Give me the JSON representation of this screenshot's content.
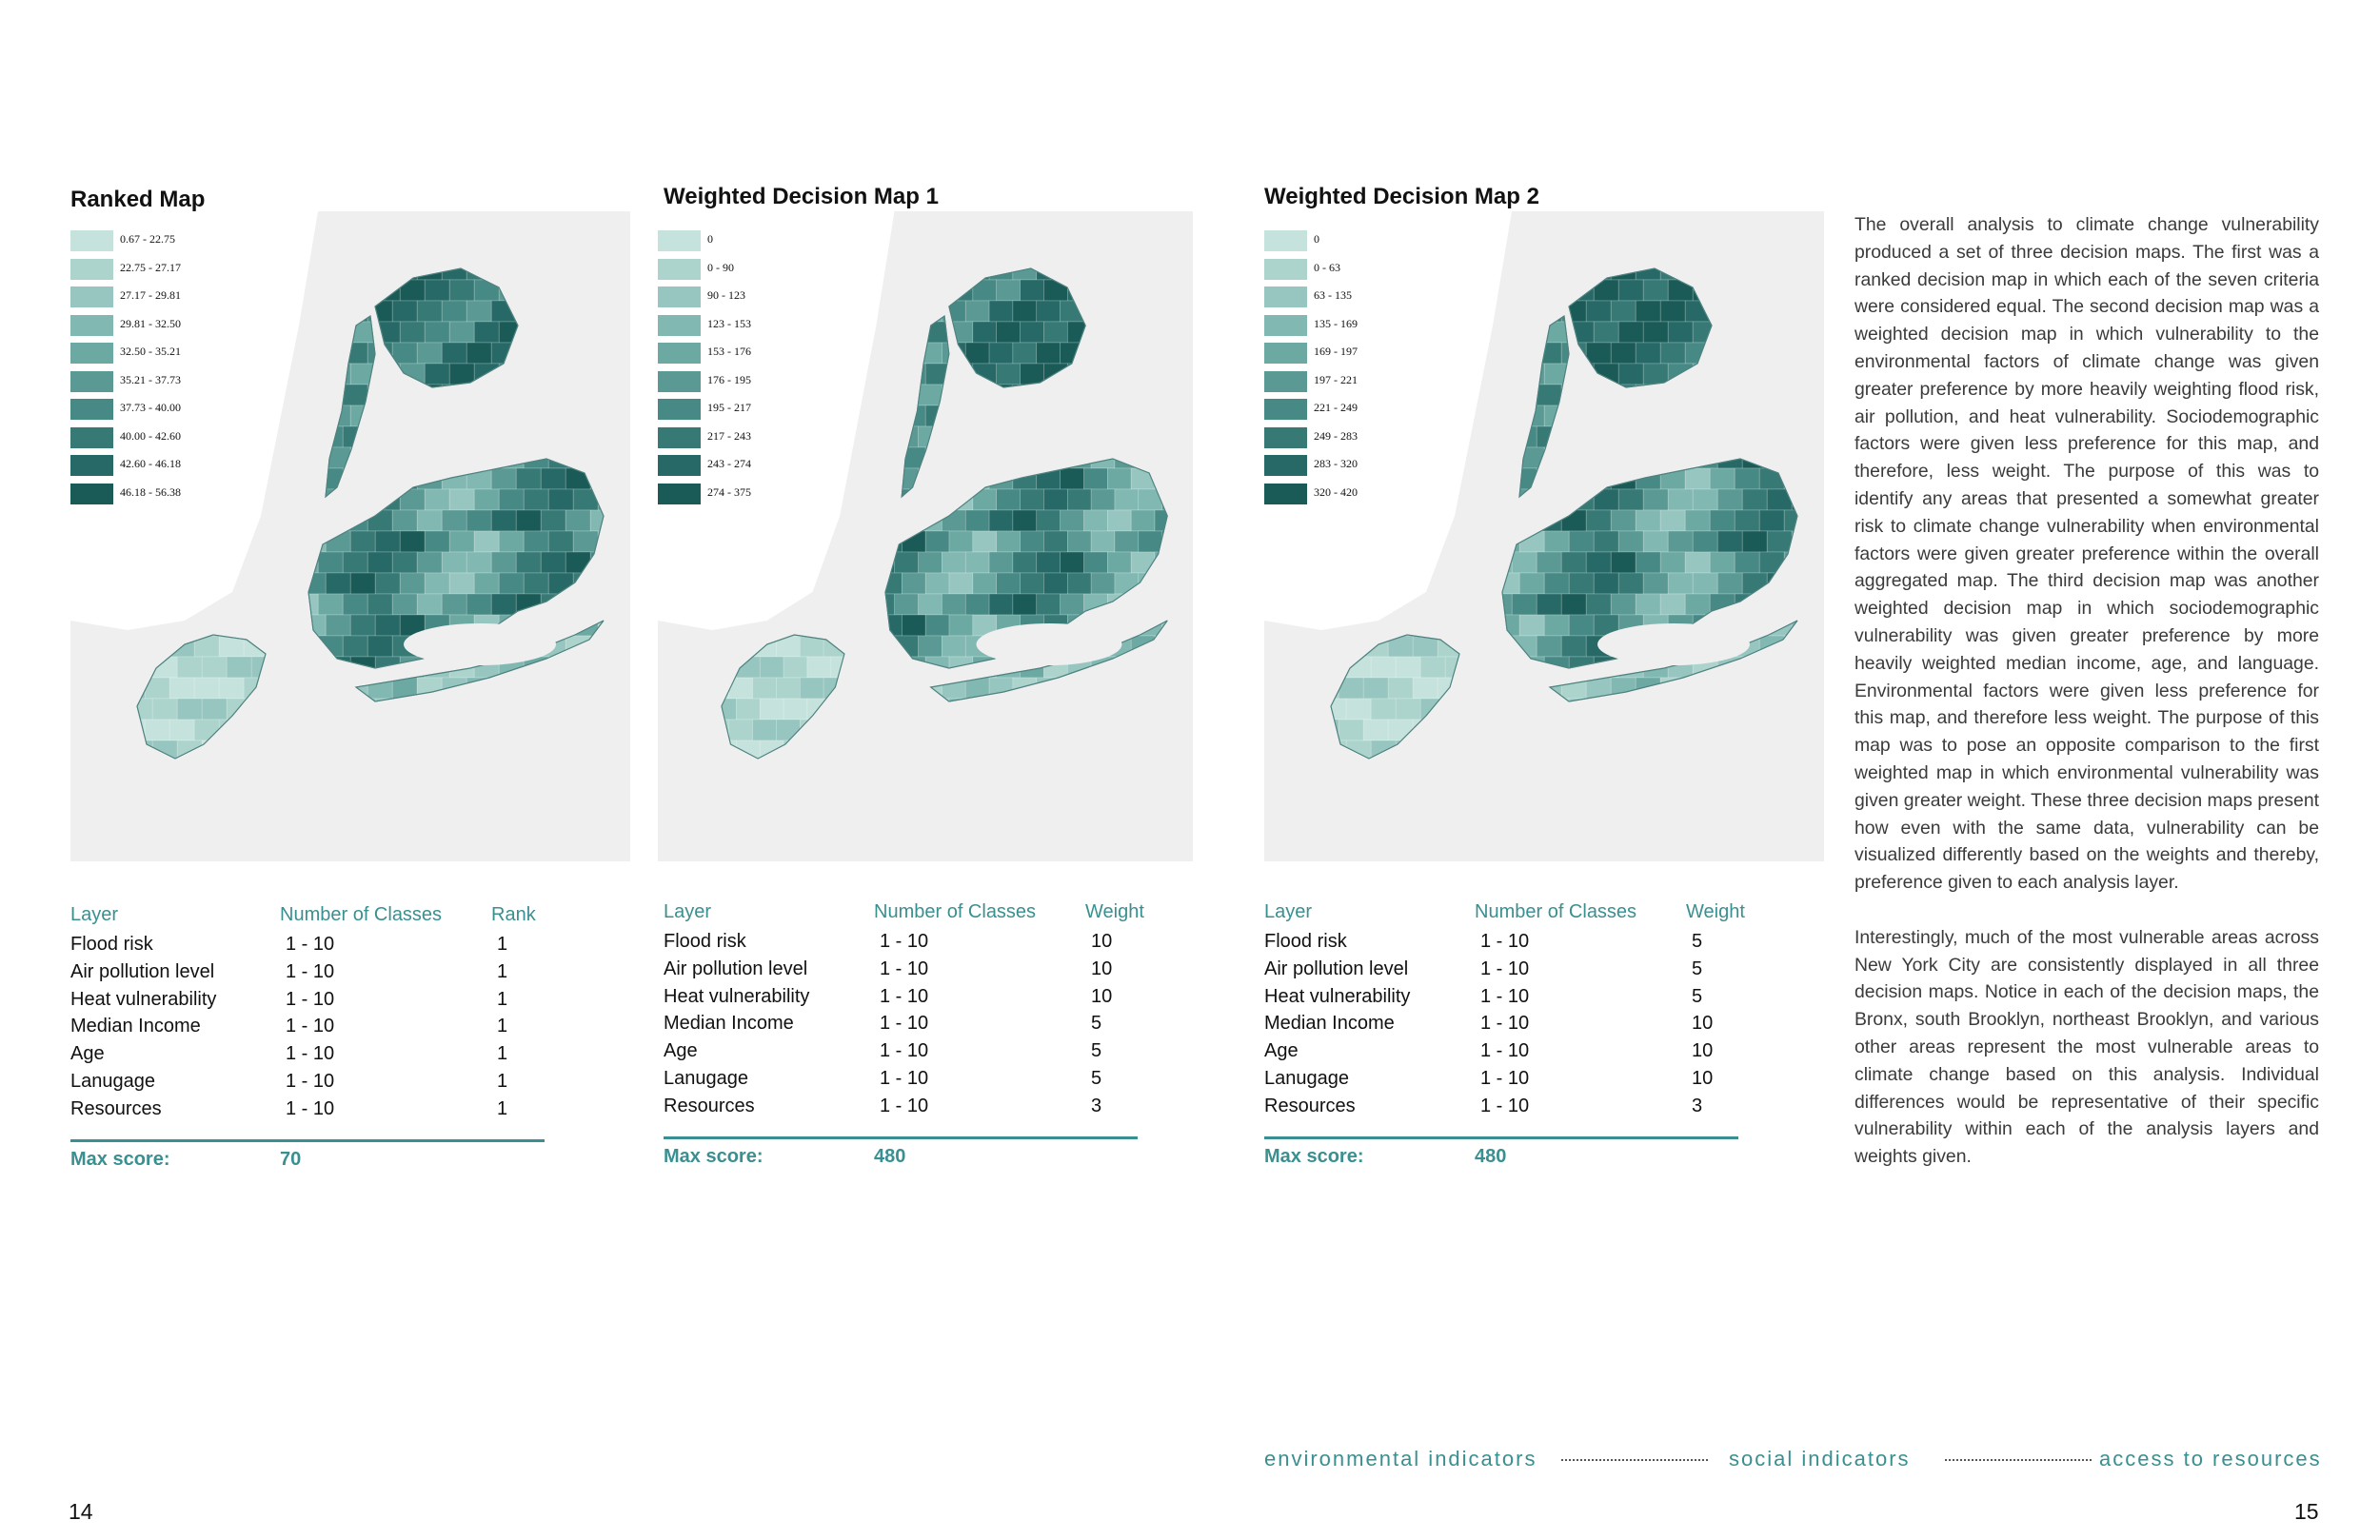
{
  "panels": [
    {
      "title": "Ranked Map",
      "legend": [
        "0.67 - 22.75",
        "22.75 - 27.17",
        "27.17 - 29.81",
        "29.81 - 32.50",
        "32.50 - 35.21",
        "35.21 - 37.73",
        "37.73 - 40.00",
        "40.00 - 42.60",
        "42.60 - 46.18",
        "46.18 - 56.38"
      ],
      "table": {
        "headers": [
          "Layer",
          "Number of Classes",
          "Rank"
        ],
        "rows": [
          [
            "Flood risk",
            "1 - 10",
            "1"
          ],
          [
            "Air pollution level",
            "1 - 10",
            "1"
          ],
          [
            "Heat vulnerability",
            "1 - 10",
            "1"
          ],
          [
            "Median Income",
            "1 - 10",
            "1"
          ],
          [
            "Age",
            "1 - 10",
            "1"
          ],
          [
            "Lanugage",
            "1 - 10",
            "1"
          ],
          [
            "Resources",
            "1 - 10",
            "1"
          ]
        ],
        "max_label": "Max score:",
        "max_value": "70"
      }
    },
    {
      "title": "Weighted Decision Map 1",
      "legend": [
        "0",
        "0 - 90",
        "90 - 123",
        "123 - 153",
        "153 - 176",
        "176 - 195",
        "195 - 217",
        "217 - 243",
        "243 - 274",
        "274 - 375"
      ],
      "table": {
        "headers": [
          "Layer",
          "Number of Classes",
          "Weight"
        ],
        "rows": [
          [
            "Flood risk",
            "1 - 10",
            "10"
          ],
          [
            "Air pollution level",
            "1 - 10",
            "10"
          ],
          [
            "Heat vulnerability",
            "1 - 10",
            "10"
          ],
          [
            "Median Income",
            "1 - 10",
            "5"
          ],
          [
            "Age",
            "1 - 10",
            "5"
          ],
          [
            "Lanugage",
            "1 - 10",
            "5"
          ],
          [
            "Resources",
            "1 - 10",
            "3"
          ]
        ],
        "max_label": "Max score:",
        "max_value": "480"
      }
    },
    {
      "title": "Weighted Decision Map 2",
      "legend": [
        "0",
        "0 - 63",
        "63 - 135",
        "135 - 169",
        "169 - 197",
        "197 - 221",
        "221 - 249",
        "249 - 283",
        "283 - 320",
        "320 - 420"
      ],
      "table": {
        "headers": [
          "Layer",
          "Number of Classes",
          "Weight"
        ],
        "rows": [
          [
            "Flood risk",
            "1 - 10",
            "5"
          ],
          [
            "Air pollution level",
            "1 - 10",
            "5"
          ],
          [
            "Heat vulnerability",
            "1 - 10",
            "5"
          ],
          [
            "Median Income",
            "1 - 10",
            "10"
          ],
          [
            "Age",
            "1 - 10",
            "10"
          ],
          [
            "Lanugage",
            "1 - 10",
            "10"
          ],
          [
            "Resources",
            "1 - 10",
            "3"
          ]
        ],
        "max_label": "Max score:",
        "max_value": "480"
      }
    }
  ],
  "legend_colors": [
    "#c5e3dc",
    "#acd4cd",
    "#97c6c0",
    "#82b8b2",
    "#6da9a3",
    "#5a9994",
    "#478985",
    "#367975",
    "#266966",
    "#1a5a57"
  ],
  "colors": {
    "accent": "#3a8f91",
    "map_background": "#efefef",
    "land": "#ffffff"
  },
  "body_paragraphs": [
    "The overall analysis to climate change vulnerability produced a set of three decision maps. The first was a ranked decision map in which each of the seven criteria were considered equal. The second decision map was a weighted decision map in which vulnerability to the environmental factors of climate change was given greater preference by more heavily weighting flood risk, air pollution, and heat vulnerability. Sociodemographic factors were given less preference for this map, and therefore, less weight. The purpose of this was to identify any areas that presented a somewhat greater risk to climate change vulnerability when environmental factors were given greater preference within the overall aggregated map. The third decision map was another weighted decision map in which sociodemographic vulnerability was given greater preference by more heavily weighted median income, age, and language. Environmental factors were given less preference for this map, and therefore less weight. The purpose of this map was to pose an opposite comparison to the first weighted map in which environmental vulnerability was given greater weight. These three decision maps present how even with the same data, vulnerability can be visualized differently based on the weights and thereby, preference given to each analysis layer.",
    "Interestingly, much of the most vulnerable areas across New York City are consistently displayed in all three decision maps. Notice in each of the decision maps, the Bronx, south Brooklyn, northeast Brooklyn, and various other areas represent the most vulnerable areas to climate change based on this analysis. Individual differences would be representative of their specific vulnerability within each of the analysis layers and weights given."
  ],
  "footer": {
    "nav": [
      "environmental indicators",
      "social indicators",
      "access to resources"
    ],
    "page_left": "14",
    "page_right": "15"
  }
}
